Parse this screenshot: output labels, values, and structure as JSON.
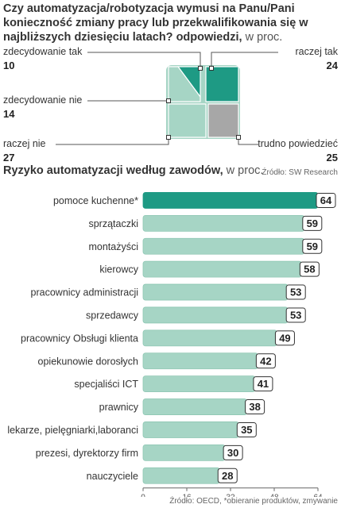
{
  "survey": {
    "question": "Czy automatyzacja/robotyzacja wymusi na Panu/Pani konieczność zmiany pracy lub przekwalifikowania się w najbliższych dziesięciu latach? odpowiedzi,",
    "unit": "w proc.",
    "source": "Źródło: SW Research"
  },
  "bars": {
    "title": "Ryzyko automatyzacji według zawodów,",
    "unit": "w proc.",
    "source": "Źródło: OECD, *obieranie produktów, zmywanie"
  },
  "colors": {
    "dark": "#1e9a84",
    "light": "#a6d5c5",
    "grey": "#a7a7a7",
    "badge_stroke": "#333333"
  },
  "chart_data": [
    {
      "type": "treemap",
      "categories": [
        "zdecydowanie tak",
        "raczej tak",
        "zdecydowanie nie",
        "raczej nie",
        "trudno powiedzieć"
      ],
      "values": [
        10,
        24,
        14,
        27,
        25
      ]
    },
    {
      "type": "bar",
      "orientation": "horizontal",
      "categories": [
        "pomoce kuchenne*",
        "sprzątaczki",
        "montażyści",
        "kierowcy",
        "pracownicy administracji",
        "sprzedawcy",
        "pracownicy Obsługi klienta",
        "opiekunowie dorosłych",
        "specjaliści ICT",
        "prawnicy",
        "lekarze, pielęgniarki,laboranci",
        "prezesi, dyrektorzy firm",
        "nauczyciele"
      ],
      "values": [
        64,
        59,
        59,
        58,
        53,
        53,
        49,
        42,
        41,
        38,
        35,
        30,
        28
      ],
      "xlim": [
        0,
        64
      ],
      "xticks": [
        0,
        16,
        32,
        48,
        64
      ],
      "highlight_index": 0,
      "grid": false
    }
  ]
}
